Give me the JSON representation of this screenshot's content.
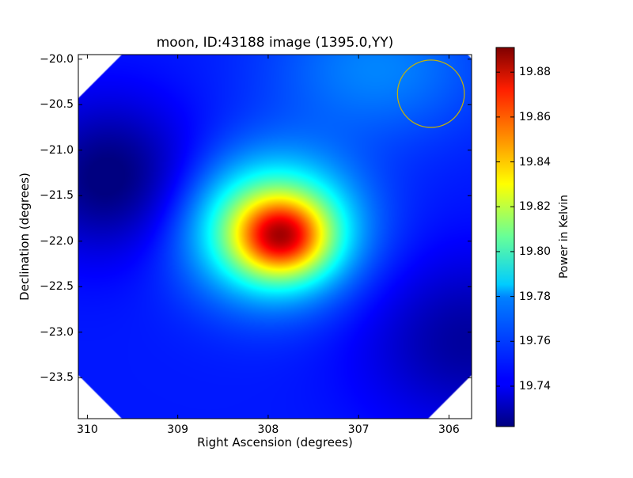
{
  "chart_data": {
    "type": "heatmap",
    "title": "moon, ID:43188 image (1395.0,YY)",
    "xlabel": "Right Ascension (degrees)",
    "ylabel": "Declination (degrees)",
    "xlim": [
      310.1,
      305.75
    ],
    "ylim": [
      -23.95,
      -19.95
    ],
    "x_ticks": [
      310,
      309,
      308,
      307,
      306
    ],
    "x_tick_labels": [
      "310",
      "309",
      "308",
      "307",
      "306"
    ],
    "y_ticks": [
      -20.0,
      -20.5,
      -21.0,
      -21.5,
      -22.0,
      -22.5,
      -23.0,
      -23.5
    ],
    "y_tick_labels": [
      "−20.0",
      "−20.5",
      "−21.0",
      "−21.5",
      "−22.0",
      "−22.5",
      "−23.0",
      "−23.5"
    ],
    "colormap": "jet",
    "colorbar": {
      "label": "Power in Kelvin",
      "range": [
        19.722,
        19.891
      ],
      "ticks": [
        19.74,
        19.76,
        19.78,
        19.8,
        19.82,
        19.84,
        19.86,
        19.88
      ],
      "tick_labels": [
        "19.74",
        "19.76",
        "19.78",
        "19.80",
        "19.82",
        "19.84",
        "19.86",
        "19.88"
      ]
    },
    "features": [
      {
        "kind": "peak",
        "ra": 307.9,
        "dec": -21.9,
        "value": 19.89
      },
      {
        "kind": "minimum",
        "ra": 309.7,
        "dec": -21.3,
        "value": 19.722
      },
      {
        "kind": "minimum",
        "ra": 306.0,
        "dec": -23.0,
        "value": 19.728
      },
      {
        "kind": "local-high",
        "ra": 306.8,
        "dec": -20.2,
        "value": 19.772
      }
    ],
    "grid": false,
    "annotations": [
      {
        "kind": "circle",
        "ra": 306.2,
        "dec": -20.38,
        "radius_deg": 0.37,
        "color": "#c8b400"
      }
    ]
  }
}
